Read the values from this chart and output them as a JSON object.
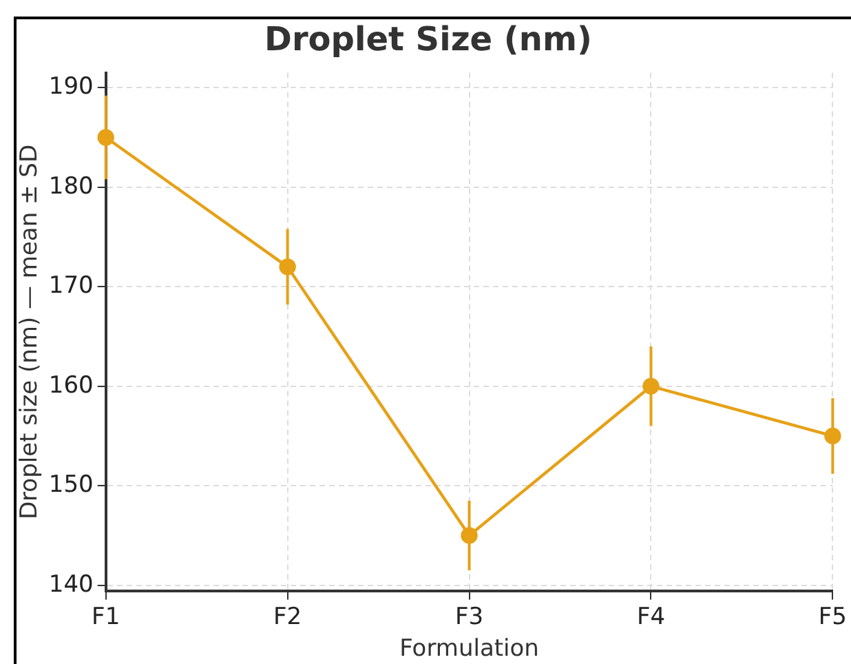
{
  "chart_data": {
    "type": "line",
    "title": "Droplet Size (nm)",
    "xlabel": "Formulation",
    "ylabel": "Droplet size (nm) — mean ± SD",
    "categories": [
      "F1",
      "F2",
      "F3",
      "F4",
      "F5"
    ],
    "series": [
      {
        "color": "#e6a117",
        "values": [
          185,
          172,
          145,
          160,
          155
        ],
        "errors": [
          4.2,
          3.8,
          3.5,
          4,
          3.8
        ]
      }
    ],
    "ylim": [
      139.4,
      191.5
    ],
    "yticks": [
      140,
      150,
      160,
      170,
      180,
      190
    ],
    "grid": true,
    "legend": false,
    "marker": "circle",
    "line_style": "solid"
  }
}
